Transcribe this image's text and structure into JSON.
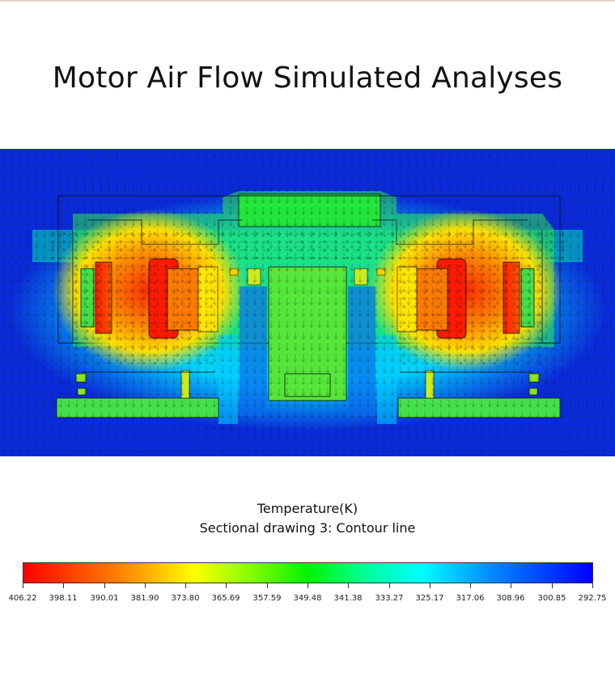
{
  "title": "Motor Air Flow Simulated Analyses",
  "caption": {
    "quantity": "Temperature(K)",
    "section": "Sectional drawing 3: Contour line"
  },
  "colorbar": {
    "labels": [
      "406.22",
      "398.11",
      "390.01",
      "381.90",
      "373.80",
      "365.69",
      "357.59",
      "349.48",
      "341.38",
      "333.27",
      "325.17",
      "317.06",
      "308.96",
      "300.85",
      "292.75"
    ],
    "min": 292.75,
    "max": 406.22,
    "colors": {
      "hot": "#ff0000",
      "warm": "#ffff00",
      "mid": "#00f500",
      "cool": "#00ffff",
      "cold": "#0000ff"
    }
  }
}
